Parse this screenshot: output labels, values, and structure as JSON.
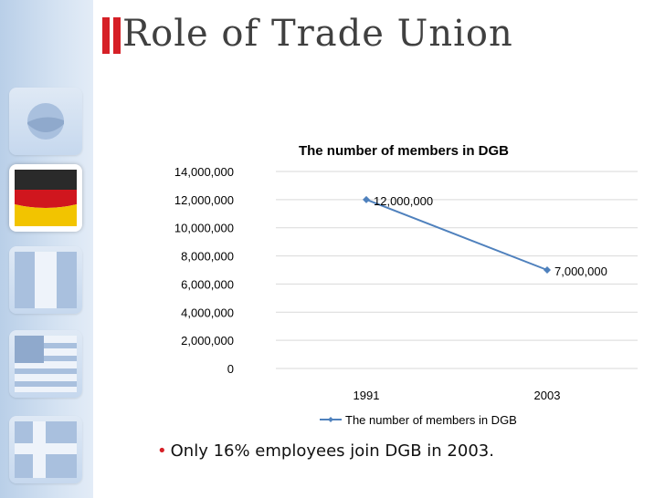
{
  "slide": {
    "title": "Role of Trade Union",
    "bullet": "Only 16% employees join DGB in 2003."
  },
  "colors": {
    "accent_red": "#d62027",
    "series_line": "#4f81bd",
    "gridline": "#d9d9d9"
  },
  "sidebar": {
    "items": [
      {
        "icon": "circle-icon"
      },
      {
        "icon": "germany-flag-icon",
        "active": true
      },
      {
        "icon": "stripe-flag-icon"
      },
      {
        "icon": "usa-flag-icon"
      },
      {
        "icon": "cross-flag-icon"
      }
    ]
  },
  "chart_data": {
    "type": "line",
    "title": "The number of members in DGB",
    "categories": [
      "1991",
      "2003"
    ],
    "series": [
      {
        "name": "The number of members in DGB",
        "values": [
          12000000,
          7000000
        ],
        "data_labels": [
          "12,000,000",
          "7,000,000"
        ]
      }
    ],
    "ylim": [
      0,
      14000000
    ],
    "yticks": [
      "0",
      "2,000,000",
      "4,000,000",
      "6,000,000",
      "8,000,000",
      "10,000,000",
      "12,000,000",
      "14,000,000"
    ],
    "ytick_values": [
      0,
      2000000,
      4000000,
      6000000,
      8000000,
      10000000,
      12000000,
      14000000
    ],
    "grid": true,
    "legend": "bottom"
  }
}
